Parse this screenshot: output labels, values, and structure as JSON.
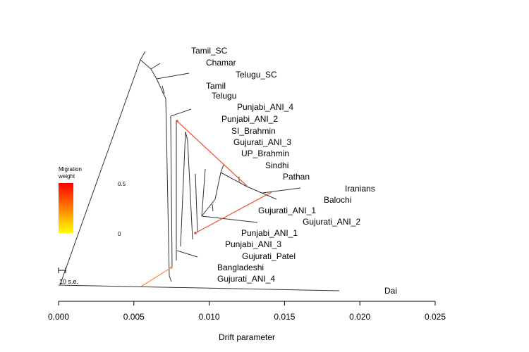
{
  "chart_data": {
    "type": "tree",
    "xlabel": "Drift parameter",
    "xlim": [
      0,
      0.025
    ],
    "xticks": [
      "0.000",
      "0.005",
      "0.010",
      "0.015",
      "0.020",
      "0.025"
    ],
    "tips": [
      "Tamil_SC",
      "Chamar",
      "Telugu_SC",
      "Tamil",
      "Telugu",
      "Punjabi_ANI_4",
      "Punjabi_ANI_2",
      "SI_Brahmin",
      "Gujurati_ANI_3",
      "UP_Brahmin",
      "Sindhi",
      "Pathan",
      "Iranians",
      "Balochi",
      "Gujurati_ANI_1",
      "Gujurati_ANI_2",
      "Punjabi_ANI_1",
      "Punjabi_ANI_3",
      "Gujurati_Patel",
      "Bangladeshi",
      "Gujurati_ANI_4",
      "Dai"
    ],
    "legend": {
      "title_line1": "Migration",
      "title_line2": "weight",
      "max_label": "0.5",
      "min_label": "0",
      "color_high": "#ff0000",
      "color_low": "#ffff00"
    },
    "scale_bar": "10 s.e.",
    "migrations": [
      {
        "from": "Iranians/Balochi ancestor",
        "to": "Punjabi_ANI_2 lineage",
        "color": "#f04a30"
      },
      {
        "from": "Iranians/Balochi ancestor",
        "to": "Punjabi_ANI_1 lineage",
        "color": "#f04a30"
      },
      {
        "from": "Dai branch",
        "to": "Bangladeshi lineage",
        "color": "#f88a40"
      }
    ]
  }
}
